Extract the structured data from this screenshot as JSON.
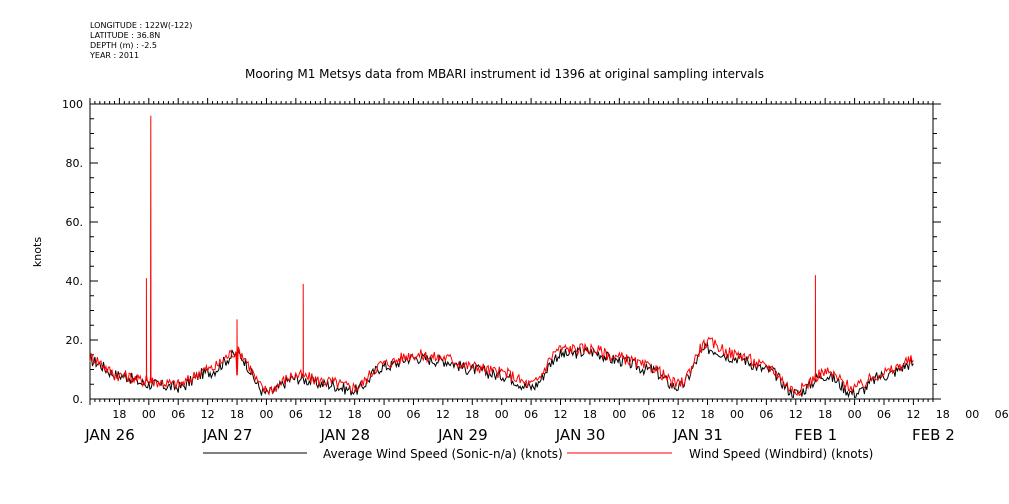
{
  "meta": {
    "longitude": "LONGITUDE : 122W(-122)",
    "latitude": "LATITUDE : 36.8N",
    "depth": "DEPTH (m) : -2.5",
    "year": "YEAR : 2011"
  },
  "chart_data": {
    "type": "line",
    "title": "Mooring M1 Metsys data from MBARI instrument id 1396 at original sampling intervals",
    "ylabel": "knots",
    "xlabel": "",
    "ylim": [
      0,
      100
    ],
    "xlim_hours_labels": [
      "JAN 26 12:00",
      "FEB 2 16:00"
    ],
    "y_ticks": [
      "0.",
      "20.",
      "40.",
      "60.",
      "80.",
      "100"
    ],
    "hour_ticks": [
      "18",
      "00",
      "06",
      "12",
      "18",
      "00",
      "06",
      "12",
      "18",
      "00",
      "06",
      "12",
      "18",
      "00",
      "06",
      "12",
      "18",
      "00",
      "06",
      "12",
      "18",
      "00",
      "06",
      "12",
      "18",
      "00",
      "06",
      "12",
      "18",
      "00",
      "06",
      "12"
    ],
    "day_labels": [
      "JAN 26",
      "JAN 27",
      "JAN 28",
      "JAN 29",
      "JAN 30",
      "JAN 31",
      "FEB  1",
      "FEB  2"
    ],
    "series": [
      {
        "name": "Average Wind Speed (Sonic-n/a) (knots)",
        "color": "#000000",
        "x_hour": [
          0,
          6,
          12,
          18,
          24,
          30,
          36,
          42,
          48,
          54,
          60,
          66,
          72,
          78,
          84,
          90,
          96,
          102,
          108,
          114,
          120,
          126,
          132,
          138,
          144,
          150,
          156,
          162,
          168
        ],
        "values": [
          13,
          8,
          5,
          4,
          9,
          15,
          2,
          7,
          5,
          3,
          11,
          14,
          13,
          10,
          8,
          4,
          15,
          16,
          13,
          10,
          4,
          17,
          14,
          10,
          2,
          8,
          2,
          8,
          12
        ]
      },
      {
        "name": "Wind Speed (Windbird) (knots)",
        "color": "#ff0000",
        "x_hour": [
          0,
          6,
          12,
          18,
          24,
          30,
          36,
          42,
          48,
          54,
          60,
          66,
          72,
          78,
          84,
          90,
          96,
          102,
          108,
          114,
          120,
          126,
          132,
          138,
          144,
          150,
          156,
          162,
          168
        ],
        "values": [
          14,
          8,
          6,
          5,
          10,
          16,
          3,
          8,
          6,
          4,
          12,
          15,
          14,
          11,
          9,
          5,
          17,
          17,
          14,
          11,
          5,
          19,
          15,
          11,
          3,
          9,
          4,
          9,
          13
        ],
        "spikes": [
          {
            "x_hour": 11.5,
            "value": 41
          },
          {
            "x_hour": 12.4,
            "value": 96
          },
          {
            "x_hour": 30.0,
            "value": 27
          },
          {
            "x_hour": 43.5,
            "value": 39
          },
          {
            "x_hour": 148.0,
            "value": 42
          }
        ]
      }
    ],
    "legend": "bottom",
    "grid": false
  }
}
